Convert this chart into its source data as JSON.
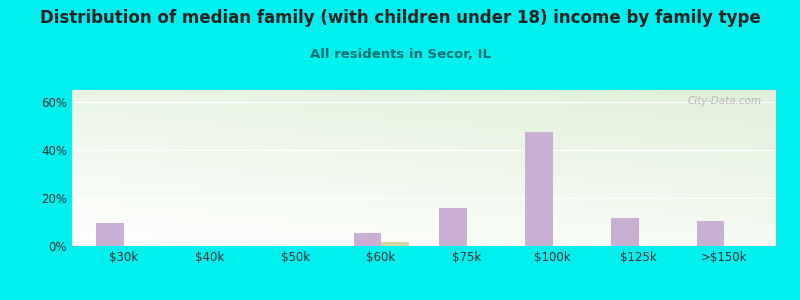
{
  "title": "Distribution of median family (with children under 18) income by family type",
  "subtitle": "All residents in Secor, IL",
  "background_color": "#00EFEF",
  "plot_bg_colors": [
    "#ffffff",
    "#dff0d8"
  ],
  "categories": [
    "$30k",
    "$40k",
    "$50k",
    "$60k",
    "$75k",
    "$100k",
    "$125k",
    ">$150k"
  ],
  "married_couple": [
    9.5,
    0.0,
    0.0,
    5.5,
    16.0,
    47.5,
    11.5,
    10.5
  ],
  "male_no_wife": [
    0.0,
    0.0,
    0.0,
    1.5,
    0.0,
    0.0,
    0.0,
    0.0
  ],
  "married_couple_color": "#c9afd4",
  "male_no_wife_color": "#d4d4a0",
  "bar_width": 0.32,
  "ylim": [
    0,
    65
  ],
  "yticks": [
    0,
    20,
    40,
    60
  ],
  "ytick_labels": [
    "0%",
    "20%",
    "40%",
    "60%"
  ],
  "title_fontsize": 12,
  "subtitle_fontsize": 9.5,
  "axis_fontsize": 8.5,
  "legend_fontsize": 9,
  "watermark": "City-Data.com"
}
